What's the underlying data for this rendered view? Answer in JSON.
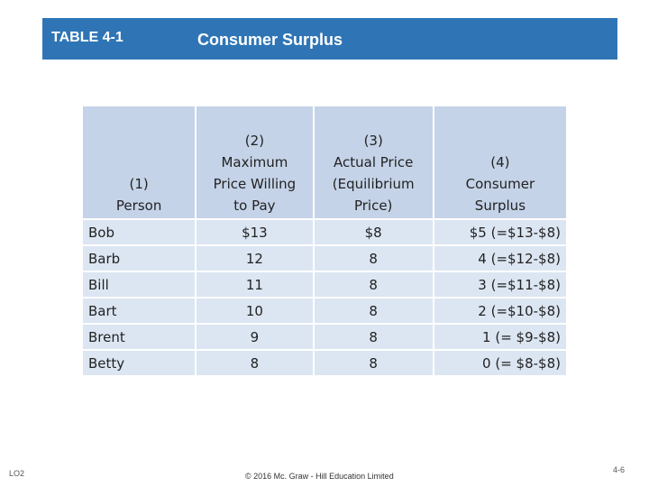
{
  "header": {
    "table_label": "TABLE 4-1",
    "title": "Consumer Surplus",
    "bar_color": "#2f75b5"
  },
  "table": {
    "columns": [
      [
        "(1)",
        "Person"
      ],
      [
        "(2)",
        "Maximum",
        "Price Willing",
        "to Pay"
      ],
      [
        "(3)",
        "Actual Price",
        "(Equilibrium",
        "Price)"
      ],
      [
        "(4)",
        "Consumer",
        "Surplus"
      ]
    ],
    "rows": [
      [
        "Bob",
        "$13",
        "$8",
        "$5 (=$13-$8)"
      ],
      [
        "Barb",
        "12",
        "8",
        "4 (=$12-$8)"
      ],
      [
        "Bill",
        "11",
        "8",
        "3 (=$11-$8)"
      ],
      [
        "Bart",
        "10",
        "8",
        "2 (=$10-$8)"
      ],
      [
        "Brent",
        "9",
        "8",
        "1 (=  $9-$8)"
      ],
      [
        "Betty",
        "8",
        "8",
        "0 (=  $8-$8)"
      ]
    ]
  },
  "footer": {
    "lo": "LO2",
    "copyright": "© 2016 Mc. Graw - Hill Education Limited",
    "page": "4-6"
  }
}
